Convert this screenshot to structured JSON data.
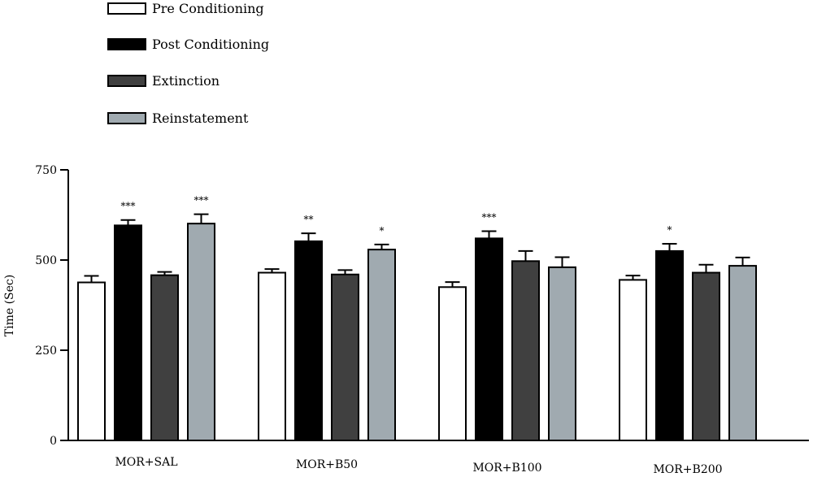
{
  "chart_data": {
    "type": "bar",
    "title": "",
    "xlabel": "",
    "ylabel": "Time (Sec)",
    "ylim": [
      0,
      750
    ],
    "yticks": [
      0,
      250,
      500,
      750
    ],
    "grid": false,
    "legend_position": "top-left",
    "categories": [
      "MOR+SAL",
      "MOR+B50",
      "MOR+B100",
      "MOR+B200"
    ],
    "series": [
      {
        "name": "Pre Conditioning",
        "color": "#ffffff",
        "values": [
          438,
          465,
          425,
          445
        ],
        "errors": [
          18,
          10,
          14,
          12
        ],
        "significance": [
          "",
          "",
          "",
          ""
        ]
      },
      {
        "name": "Post Conditioning",
        "color": "#000000",
        "values": [
          596,
          552,
          560,
          525
        ],
        "errors": [
          15,
          22,
          20,
          20
        ],
        "significance": [
          "***",
          "**",
          "***",
          "*"
        ]
      },
      {
        "name": "Extinction",
        "color": "#404040",
        "values": [
          458,
          460,
          497,
          465
        ],
        "errors": [
          9,
          12,
          28,
          22
        ],
        "significance": [
          "",
          "",
          "",
          ""
        ]
      },
      {
        "name": "Reinstatement",
        "color": "#a0aab0",
        "values": [
          601,
          529,
          480,
          484
        ],
        "errors": [
          26,
          14,
          28,
          23
        ],
        "significance": [
          "***",
          "*",
          "",
          ""
        ]
      }
    ]
  }
}
